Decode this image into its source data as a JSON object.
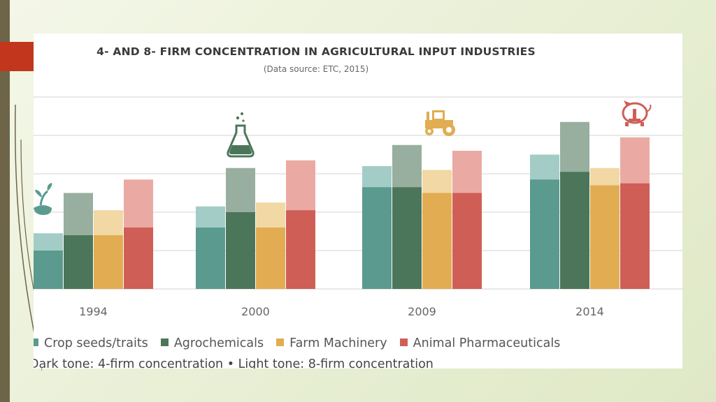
{
  "chart_data": {
    "type": "bar",
    "title": "4- AND 8- FIRM CONCENTRATION IN AGRICULTURAL INPUT INDUSTRIES",
    "subtitle": "(Data source: ETC, 2015)",
    "categories": [
      "1994",
      "2000",
      "2009",
      "2014"
    ],
    "ylim": [
      0,
      100
    ],
    "series": [
      {
        "name": "Crop seeds/traits",
        "color_dark": "#5b9a8f",
        "color_light": "#a3ccc6",
        "four_firm": [
          20,
          32,
          53,
          57
        ],
        "eight_firm": [
          29,
          43,
          64,
          70
        ]
      },
      {
        "name": "Agrochemicals",
        "color_dark": "#4c7659",
        "color_light": "#98ae9f",
        "four_firm": [
          28,
          40,
          53,
          61
        ],
        "eight_firm": [
          50,
          63,
          75,
          87
        ]
      },
      {
        "name": "Farm Machinery",
        "color_dark": "#e1ac52",
        "color_light": "#f2d8a4",
        "four_firm": [
          28,
          32,
          50,
          54
        ],
        "eight_firm": [
          41,
          45,
          62,
          63
        ]
      },
      {
        "name": "Animal Pharmaceuticals",
        "color_dark": "#cf5e56",
        "color_light": "#eaaaa3",
        "four_firm": [
          32,
          41,
          50,
          55
        ],
        "eight_firm": [
          57,
          67,
          72,
          79
        ]
      }
    ],
    "note": "Dark tone: 4-firm concentration • Light tone: 8-firm concentration",
    "grid": true
  }
}
